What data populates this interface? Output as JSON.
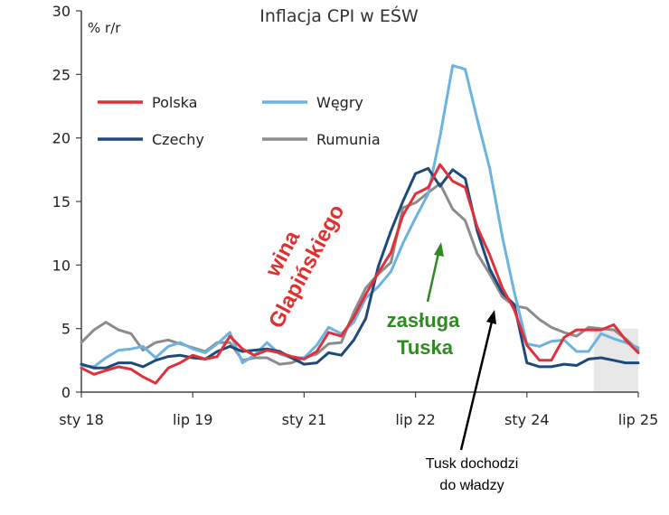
{
  "chart_data": {
    "type": "line",
    "title": "Inflacja CPI w EŚW",
    "ylabel": "% r/r",
    "ylim": [
      0,
      30
    ],
    "yticks": [
      0,
      5,
      10,
      15,
      20,
      25,
      30
    ],
    "xlim": [
      2018.0,
      2025.5
    ],
    "xticks": [
      {
        "label": "sty 18",
        "x": 2018.0
      },
      {
        "label": "lip 19",
        "x": 2019.5
      },
      {
        "label": "sty 21",
        "x": 2021.0
      },
      {
        "label": "lip 22",
        "x": 2022.5
      },
      {
        "label": "sty 24",
        "x": 2024.0
      },
      {
        "label": "lip 25",
        "x": 2025.5
      }
    ],
    "shaded_period": [
      2024.9,
      2025.5
    ],
    "series": [
      {
        "name": "Polska",
        "color": "#e0303a",
        "x": [
          2018.0,
          2018.17,
          2018.33,
          2018.5,
          2018.67,
          2018.83,
          2019.0,
          2019.17,
          2019.33,
          2019.5,
          2019.67,
          2019.83,
          2020.0,
          2020.17,
          2020.33,
          2020.5,
          2020.67,
          2020.83,
          2021.0,
          2021.17,
          2021.33,
          2021.5,
          2021.67,
          2021.83,
          2022.0,
          2022.17,
          2022.33,
          2022.5,
          2022.67,
          2022.83,
          2023.0,
          2023.17,
          2023.33,
          2023.5,
          2023.67,
          2023.83,
          2024.0,
          2024.17,
          2024.33,
          2024.5,
          2024.67,
          2024.83,
          2025.0,
          2025.17,
          2025.33,
          2025.5
        ],
        "y": [
          1.9,
          1.4,
          1.7,
          2.0,
          1.8,
          1.2,
          0.7,
          1.9,
          2.3,
          2.9,
          2.6,
          2.8,
          4.4,
          3.4,
          2.9,
          3.3,
          3.1,
          2.8,
          2.6,
          3.2,
          4.7,
          4.4,
          5.9,
          7.7,
          9.4,
          11.0,
          13.9,
          15.6,
          16.1,
          17.9,
          16.6,
          16.1,
          13.0,
          10.8,
          8.2,
          6.5,
          3.7,
          2.5,
          2.5,
          4.3,
          4.9,
          4.9,
          4.9,
          5.3,
          4.1,
          3.1
        ]
      },
      {
        "name": "Węgry",
        "color": "#6cb3e0",
        "x": [
          2018.0,
          2018.17,
          2018.33,
          2018.5,
          2018.67,
          2018.83,
          2019.0,
          2019.17,
          2019.33,
          2019.5,
          2019.67,
          2019.83,
          2020.0,
          2020.17,
          2020.33,
          2020.5,
          2020.67,
          2020.83,
          2021.0,
          2021.17,
          2021.33,
          2021.5,
          2021.67,
          2021.83,
          2022.0,
          2022.17,
          2022.33,
          2022.5,
          2022.67,
          2022.83,
          2023.0,
          2023.17,
          2023.33,
          2023.5,
          2023.67,
          2023.83,
          2024.0,
          2024.17,
          2024.33,
          2024.5,
          2024.67,
          2024.83,
          2025.0,
          2025.17,
          2025.33,
          2025.5
        ],
        "y": [
          2.1,
          2.0,
          2.7,
          3.3,
          3.4,
          3.6,
          2.7,
          3.6,
          3.9,
          3.4,
          3.1,
          3.8,
          4.7,
          2.3,
          2.9,
          3.9,
          3.0,
          2.7,
          2.7,
          3.7,
          5.1,
          4.6,
          5.5,
          7.4,
          8.3,
          9.5,
          11.7,
          13.7,
          15.6,
          20.1,
          25.7,
          25.4,
          21.5,
          17.6,
          12.2,
          7.9,
          3.8,
          3.6,
          4.0,
          4.1,
          3.2,
          3.2,
          4.6,
          4.2,
          3.9,
          3.5
        ]
      },
      {
        "name": "Czechy",
        "color": "#1d4a7a",
        "x": [
          2018.0,
          2018.17,
          2018.33,
          2018.5,
          2018.67,
          2018.83,
          2019.0,
          2019.17,
          2019.33,
          2019.5,
          2019.67,
          2019.83,
          2020.0,
          2020.17,
          2020.33,
          2020.5,
          2020.67,
          2020.83,
          2021.0,
          2021.17,
          2021.33,
          2021.5,
          2021.67,
          2021.83,
          2022.0,
          2022.17,
          2022.33,
          2022.5,
          2022.67,
          2022.83,
          2023.0,
          2023.17,
          2023.33,
          2023.5,
          2023.67,
          2023.83,
          2024.0,
          2024.17,
          2024.33,
          2024.5,
          2024.67,
          2024.83,
          2025.0,
          2025.17,
          2025.33,
          2025.5
        ],
        "y": [
          2.2,
          1.9,
          1.9,
          2.3,
          2.3,
          2.0,
          2.5,
          2.8,
          2.9,
          2.7,
          2.6,
          3.2,
          3.6,
          3.2,
          3.3,
          3.4,
          3.2,
          2.7,
          2.2,
          2.3,
          3.1,
          2.9,
          4.1,
          5.8,
          9.9,
          12.7,
          15.0,
          17.2,
          17.6,
          16.2,
          17.5,
          16.8,
          12.7,
          9.7,
          7.8,
          6.9,
          2.3,
          2.0,
          2.0,
          2.2,
          2.1,
          2.6,
          2.7,
          2.5,
          2.3,
          2.3
        ]
      },
      {
        "name": "Rumunia",
        "color": "#8c8c8c",
        "x": [
          2018.0,
          2018.17,
          2018.33,
          2018.5,
          2018.67,
          2018.83,
          2019.0,
          2019.17,
          2019.33,
          2019.5,
          2019.67,
          2019.83,
          2020.0,
          2020.17,
          2020.33,
          2020.5,
          2020.67,
          2020.83,
          2021.0,
          2021.17,
          2021.33,
          2021.5,
          2021.67,
          2021.83,
          2022.0,
          2022.17,
          2022.33,
          2022.5,
          2022.67,
          2022.83,
          2023.0,
          2023.17,
          2023.33,
          2023.5,
          2023.67,
          2023.83,
          2024.0,
          2024.17,
          2024.33,
          2024.5,
          2024.67,
          2024.83,
          2025.0,
          2025.17,
          2025.33,
          2025.5
        ],
        "y": [
          3.9,
          4.9,
          5.5,
          4.9,
          4.6,
          3.3,
          3.9,
          4.1,
          3.8,
          3.5,
          3.2,
          3.9,
          3.9,
          2.5,
          2.7,
          2.7,
          2.2,
          2.3,
          2.7,
          3.0,
          3.8,
          3.9,
          6.3,
          8.2,
          9.3,
          10.2,
          14.5,
          14.9,
          15.7,
          16.4,
          14.4,
          13.5,
          10.9,
          9.3,
          7.5,
          6.8,
          6.6,
          5.7,
          5.1,
          4.7,
          4.4,
          5.1,
          5.0,
          4.9,
          4.2,
          3.3
        ]
      }
    ],
    "legend": {
      "position": "upper-left"
    },
    "annotations": [
      {
        "id": "wina",
        "lines": [
          "wina",
          "Glapińskiego"
        ],
        "color": "#e03131"
      },
      {
        "id": "zasluga",
        "lines": [
          "zasługa",
          "Tuska"
        ],
        "color": "#2e8b22"
      },
      {
        "id": "tusk",
        "lines": [
          "Tusk dochodzi",
          "do władzy"
        ],
        "color": "#000000"
      }
    ]
  }
}
